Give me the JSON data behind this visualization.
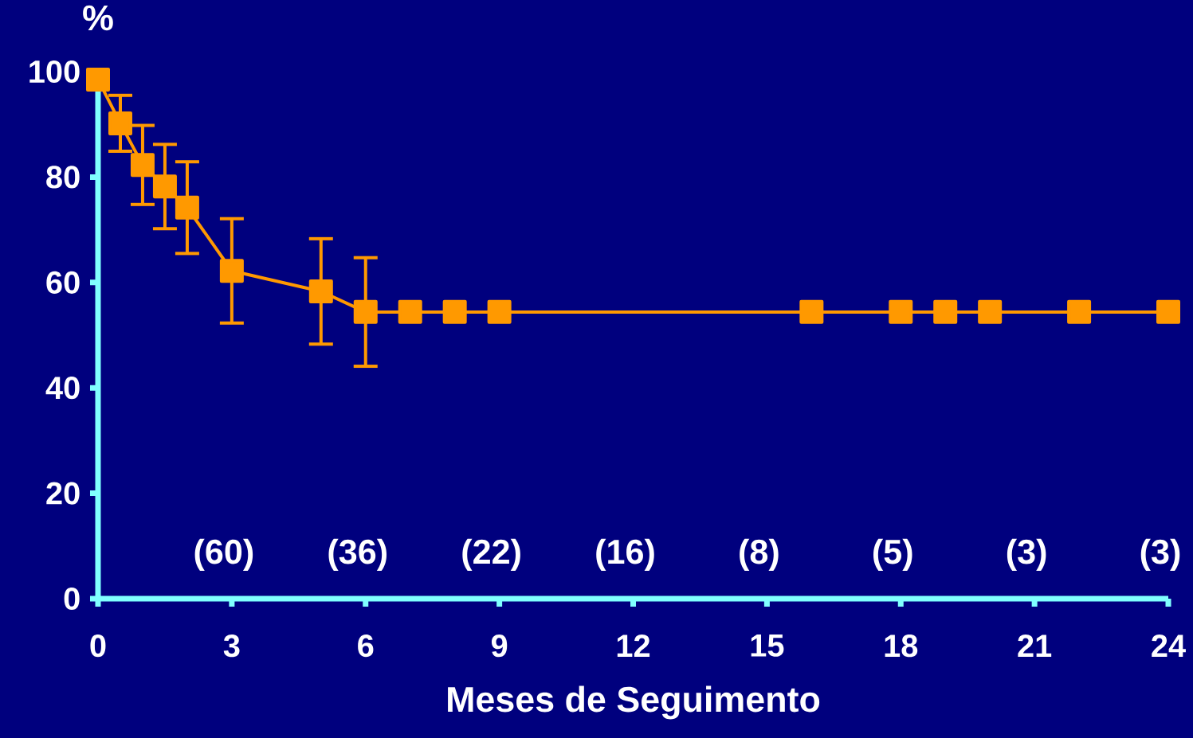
{
  "chart_data": {
    "type": "line",
    "xlabel": "Meses de Seguimento",
    "ylabel": "%",
    "xlim": [
      0,
      24
    ],
    "ylim": [
      0,
      100
    ],
    "xticks": [
      0,
      3,
      6,
      9,
      12,
      15,
      18,
      21,
      24
    ],
    "yticks": [
      0,
      20,
      40,
      60,
      80,
      100
    ],
    "marker": "square",
    "line_style": "solid",
    "series": [
      {
        "color": "#ff9900",
        "x": [
          0,
          0.5,
          1,
          1.5,
          2,
          3,
          5,
          6,
          7,
          8,
          9,
          16,
          18,
          19,
          20,
          22,
          24
        ],
        "values": [
          98.5,
          90.2,
          82.3,
          78.2,
          74.2,
          62.2,
          58.3,
          54.4,
          54.4,
          54.4,
          54.4,
          54.4,
          54.4,
          54.4,
          54.4,
          54.4,
          54.4
        ],
        "errors": [
          null,
          5.3,
          7.5,
          8,
          8.7,
          9.9,
          10,
          10.3,
          null,
          null,
          null,
          null,
          null,
          null,
          null,
          null,
          null
        ]
      }
    ],
    "annotations": [
      "(60)",
      "(36)",
      "(22)",
      "(16)",
      "(8)",
      "(5)",
      "(3)",
      "(3)"
    ]
  }
}
